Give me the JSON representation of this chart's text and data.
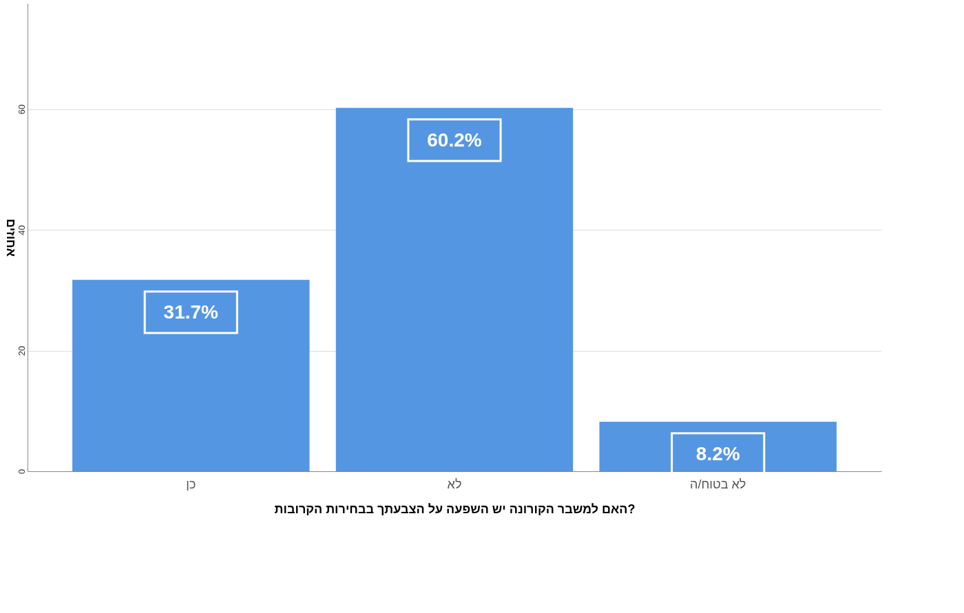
{
  "chart_data": {
    "type": "bar",
    "xlabel": "האם  למשבר הקורונה יש השפעה על הצבעתך בבחירות הקרובות?",
    "ylabel": "אחוזים",
    "categories": [
      "כן",
      "לא",
      "לא בטוח/ה"
    ],
    "values": [
      31.7,
      60.2,
      8.2
    ],
    "value_labels": [
      "31.7%",
      "60.2%",
      "8.2%"
    ],
    "color": "#5596e3",
    "ylim": [
      0,
      77.5
    ],
    "yticks": [
      0,
      20,
      40,
      60
    ],
    "grid": "y"
  }
}
